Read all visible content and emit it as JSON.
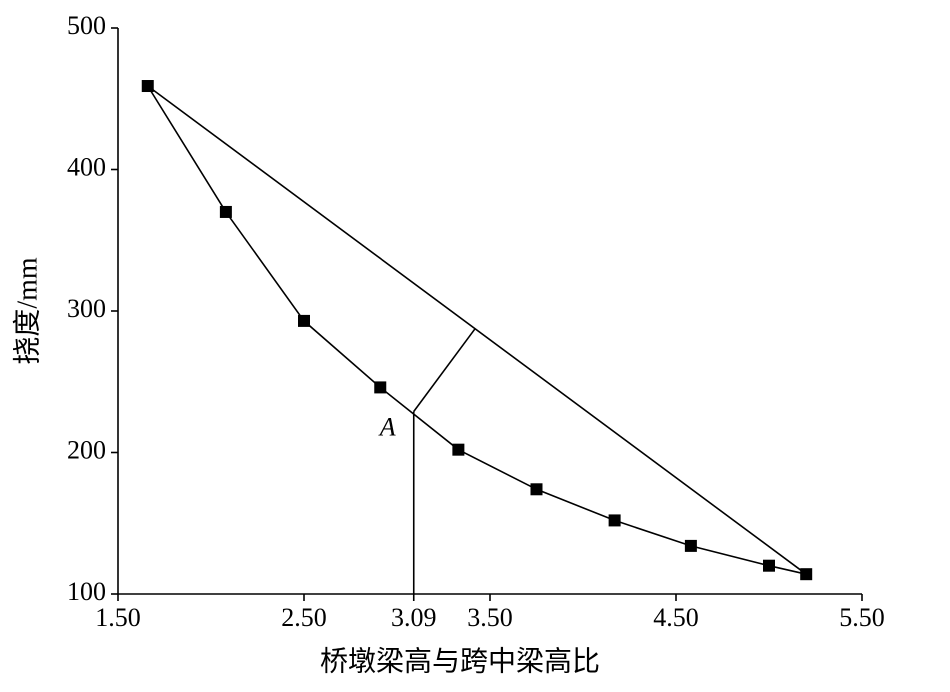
{
  "chart_data": {
    "type": "line",
    "x_label": "桥墩梁高与跨中梁高比",
    "y_label": "挠度/mm",
    "x": [
      1.66,
      2.08,
      2.5,
      2.91,
      3.33,
      3.75,
      4.17,
      4.58,
      5.0,
      5.2
    ],
    "values": [
      459,
      370,
      293,
      246,
      202,
      174,
      152,
      134,
      120,
      114
    ],
    "color": "#000000",
    "xlim": [
      1.5,
      5.5
    ],
    "xticks": [
      {
        "value": 1.5,
        "label": "1.50"
      },
      {
        "value": 2.5,
        "label": "2.50"
      },
      {
        "value": 3.09,
        "label": "3.09"
      },
      {
        "value": 3.5,
        "label": "3.50"
      },
      {
        "value": 4.5,
        "label": "4.50"
      },
      {
        "value": 5.5,
        "label": "5.50"
      }
    ],
    "ylim": [
      100,
      500
    ],
    "yticks": [
      100,
      200,
      300,
      400,
      500
    ],
    "annotations": [
      {
        "text": "A",
        "x": 3.09,
        "y": 229
      }
    ]
  }
}
